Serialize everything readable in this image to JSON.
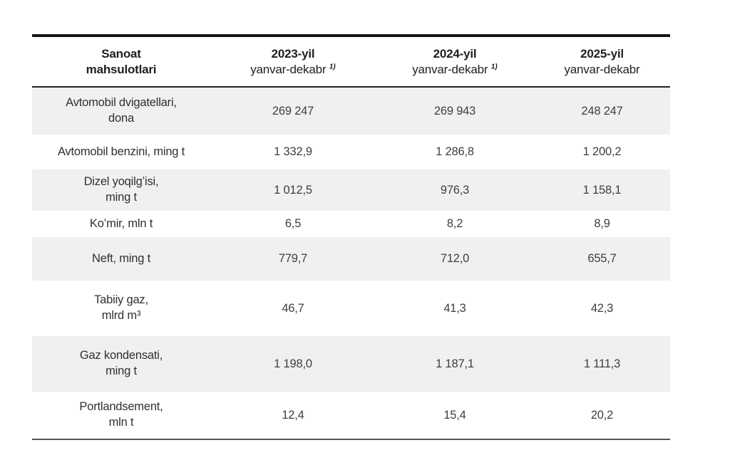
{
  "table": {
    "header": {
      "product_col": [
        "Sanoat",
        "mahsulotlari"
      ],
      "year_cols": [
        {
          "line1": "2023-yil",
          "line2": "yanvar-dekabr",
          "footnote": "1)"
        },
        {
          "line1": "2024-yil",
          "line2": "yanvar-dekabr",
          "footnote": "1)"
        },
        {
          "line1": "2025-yil",
          "line2": "yanvar-dekabr"
        }
      ]
    },
    "rows": [
      {
        "product": [
          "Avtomobil dvigatellari,",
          "dona"
        ],
        "values": [
          "269 247",
          "269 943",
          "248 247"
        ]
      },
      {
        "product": [
          "Avtomobil benzini, ming t"
        ],
        "values": [
          "1 332,9",
          "1 286,8",
          "1 200,2"
        ]
      },
      {
        "product": [
          "Dizel yoqilgʻisi,",
          "ming t"
        ],
        "values": [
          "1 012,5",
          "976,3",
          "1 158,1"
        ]
      },
      {
        "product": [
          "Koʻmir, mln t"
        ],
        "values": [
          "6,5",
          "8,2",
          "8,9"
        ]
      },
      {
        "product": [
          "Neft, ming t"
        ],
        "values": [
          "779,7",
          "712,0",
          "655,7"
        ]
      },
      {
        "product": [
          "Tabiiy gaz,",
          "mlrd m³"
        ],
        "values": [
          "46,7",
          "41,3",
          "42,3"
        ]
      },
      {
        "product": [
          "Gaz kondensati,",
          "ming t"
        ],
        "values": [
          "1 198,0",
          "1 187,1",
          "1 111,3"
        ]
      },
      {
        "product": [
          "Portlandsement,",
          "mln t"
        ],
        "values": [
          "12,4",
          "15,4",
          "20,2"
        ]
      }
    ],
    "colors": {
      "row_shade": "#f0f0ef",
      "top_border": "#161616",
      "header_separator": "#242424",
      "bottom_border": "#555555",
      "header_text": "#1f1f1f",
      "label_text": "#303030",
      "value_text": "#3a4047"
    }
  },
  "chart_data": {
    "type": "table",
    "title": "Sanoat mahsulotlari",
    "columns": [
      "Sanoat mahsulotlari",
      "2023-yil yanvar-dekabr 1)",
      "2024-yil yanvar-dekabr 1)",
      "2025-yil yanvar-dekabr"
    ],
    "categories": [
      "Avtomobil dvigatellari, dona",
      "Avtomobil benzini, ming t",
      "Dizel yoqilgʻisi, ming t",
      "Koʻmir, mln t",
      "Neft, ming t",
      "Tabiiy gaz, mlrd m³",
      "Gaz kondensati, ming t",
      "Portlandsement, mln t"
    ],
    "series": [
      {
        "name": "2023-yil yanvar-dekabr",
        "values": [
          269247,
          1332.9,
          1012.5,
          6.5,
          779.7,
          46.7,
          1198.0,
          12.4
        ]
      },
      {
        "name": "2024-yil yanvar-dekabr",
        "values": [
          269943,
          1286.8,
          976.3,
          8.2,
          712.0,
          41.3,
          1187.1,
          15.4
        ]
      },
      {
        "name": "2025-yil yanvar-dekabr",
        "values": [
          248247,
          1200.2,
          1158.1,
          8.9,
          655.7,
          42.3,
          1111.3,
          20.2
        ]
      }
    ]
  }
}
